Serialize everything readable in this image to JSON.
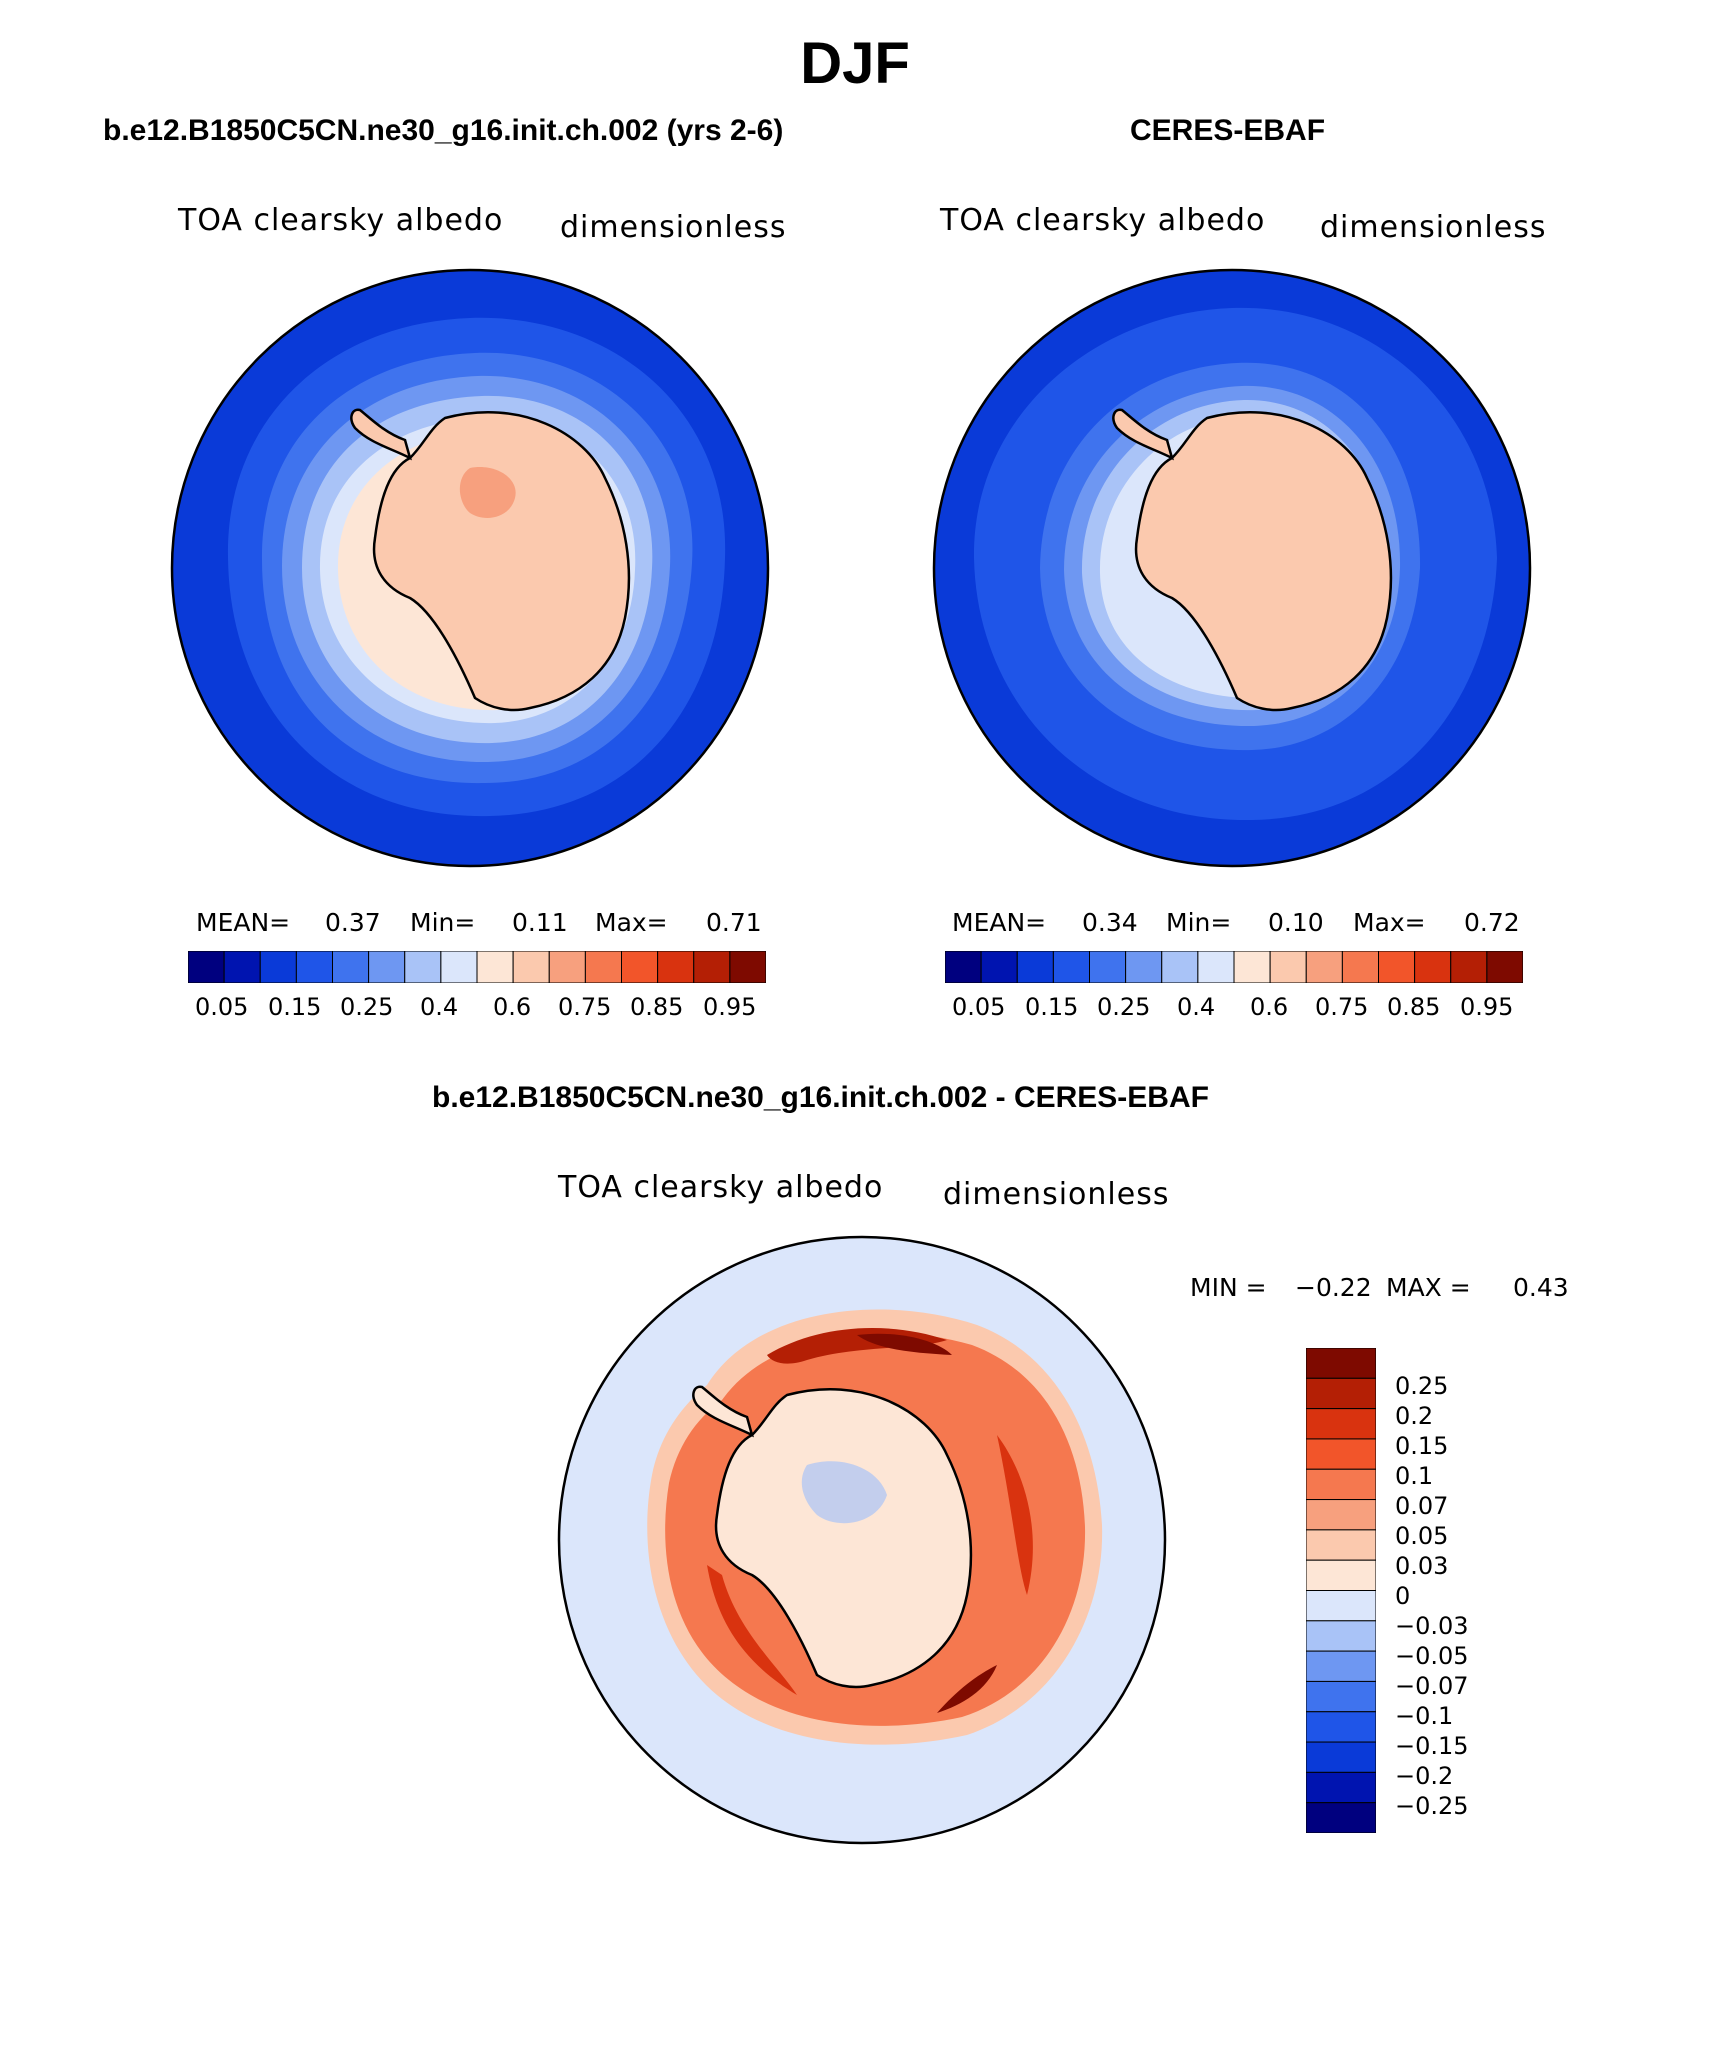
{
  "figure": {
    "title": "DJF"
  },
  "colors": {
    "outline": "#000000",
    "levels": [
      "#00007f",
      "#0014b0",
      "#0a3ad8",
      "#1f55e8",
      "#3f73ee",
      "#6e97f2",
      "#a9c3f7",
      "#dbe6fb",
      "#fde6d6",
      "#fbc9ae",
      "#f7a07e",
      "#f5784f",
      "#f2552a",
      "#d9330f",
      "#b41f05",
      "#7e0a00"
    ]
  },
  "chart_data": [
    {
      "type": "heatmap",
      "name": "model",
      "title": "b.e12.B1850C5CN.ne30_g16.init.ch.002 (yrs 2-6)",
      "variable": "TOA clearsky albedo",
      "units": "dimensionless",
      "mean_label": "MEAN=",
      "mean": "0.37",
      "min_label": "Min=",
      "min": "0.11",
      "max_label": "Max=",
      "max": "0.71",
      "colorbar_ticks": [
        "0.05",
        "0.15",
        "0.25",
        "0.4",
        "0.6",
        "0.75",
        "0.85",
        "0.95"
      ]
    },
    {
      "type": "heatmap",
      "name": "obs",
      "title": "CERES-EBAF",
      "variable": "TOA clearsky albedo",
      "units": "dimensionless",
      "mean_label": "MEAN=",
      "mean": "0.34",
      "min_label": "Min=",
      "min": "0.10",
      "max_label": "Max=",
      "max": "0.72",
      "colorbar_ticks": [
        "0.05",
        "0.15",
        "0.25",
        "0.4",
        "0.6",
        "0.75",
        "0.85",
        "0.95"
      ]
    },
    {
      "type": "heatmap",
      "name": "difference",
      "title": "b.e12.B1850C5CN.ne30_g16.init.ch.002 - CERES-EBAF",
      "variable": "TOA clearsky albedo",
      "units": "dimensionless",
      "min_label": "MIN =",
      "min": "−0.22",
      "max_label": "MAX =",
      "max": "0.43",
      "colorbar_ticks": [
        "0.25",
        "0.2",
        "0.15",
        "0.1",
        "0.07",
        "0.05",
        "0.03",
        "0",
        "−0.03",
        "−0.05",
        "−0.07",
        "−0.1",
        "−0.15",
        "−0.2",
        "−0.25"
      ],
      "colorbar_colors": [
        "#7e0a00",
        "#b41f05",
        "#d9330f",
        "#f2552a",
        "#f5784f",
        "#f7a07e",
        "#fbc9ae",
        "#fde6d6",
        "#dbe6fb",
        "#a9c3f7",
        "#6e97f2",
        "#3f73ee",
        "#1f55e8",
        "#0a3ad8",
        "#0014b0",
        "#00007f"
      ]
    }
  ]
}
